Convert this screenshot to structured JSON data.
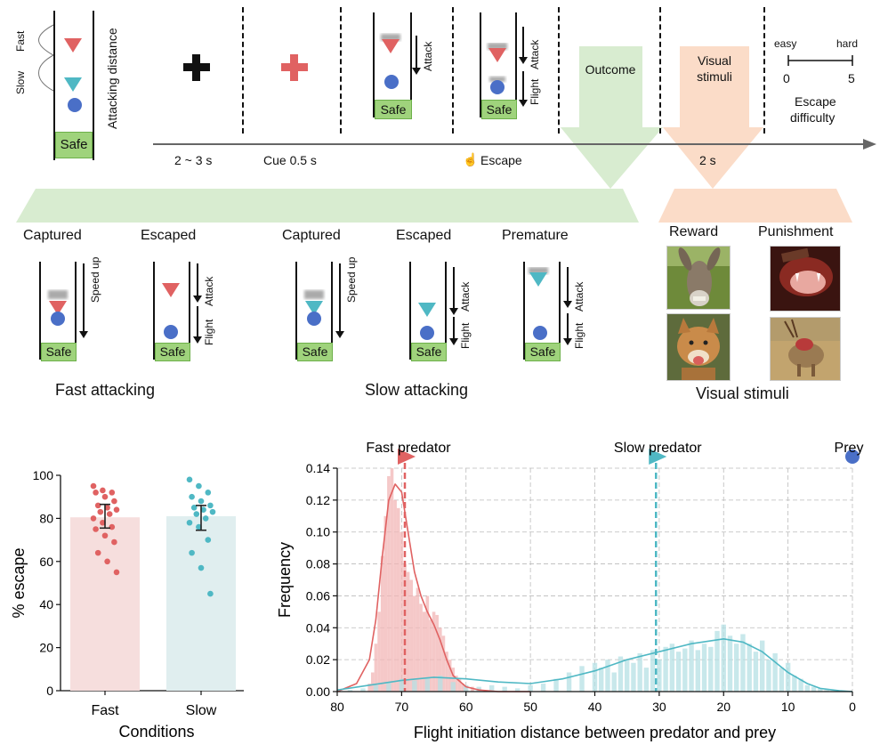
{
  "legend": {
    "fast": "Fast",
    "slow": "Slow",
    "attacking_distance": "Attacking distance",
    "safe": "Safe"
  },
  "timeline": {
    "iti": "2 ~ 3 s",
    "cue": "Cue 0.5 s",
    "escape": "Escape",
    "stim_time": "2 s",
    "attack": "Attack",
    "flight": "Flight",
    "outcome": "Outcome",
    "visual_stimuli_line1": "Visual",
    "visual_stimuli_line2": "stimuli"
  },
  "difficulty": {
    "easy": "easy",
    "hard": "hard",
    "min": "0",
    "max": "5",
    "label1": "Escape",
    "label2": "difficulty"
  },
  "outcomes": {
    "captured": "Captured",
    "escaped": "Escaped",
    "premature": "Premature",
    "speed_up": "Speed up",
    "flight": "Flight",
    "attack": "Attack",
    "fast_attacking": "Fast attacking",
    "slow_attacking": "Slow attacking"
  },
  "stimuli": {
    "reward": "Reward",
    "punishment": "Punishment",
    "caption": "Visual stimuli"
  },
  "colors": {
    "red": "#e06262",
    "teal": "#4fb8c4",
    "blue": "#4a6fc7",
    "green_band": "#d8ecd0",
    "peach_band": "#fbdcc8",
    "safe_green": "#9fd37c"
  },
  "chart_data": [
    {
      "type": "bar",
      "categories": [
        "Fast",
        "Slow"
      ],
      "values": [
        80.5,
        81
      ],
      "error": [
        [
          75.5,
          86.5
        ],
        [
          74.5,
          86
        ]
      ],
      "points": {
        "Fast": [
          95,
          93,
          92,
          92,
          90,
          88,
          86,
          85,
          84,
          83,
          82,
          80,
          78,
          76,
          75,
          72,
          69,
          64,
          60,
          55
        ],
        "Slow": [
          98,
          95,
          92,
          90,
          88,
          86,
          85,
          84,
          83,
          82,
          80,
          78,
          76,
          70,
          64,
          57,
          45
        ]
      },
      "xlabel": "Conditions",
      "ylabel": "% escape",
      "ylim": [
        0,
        100
      ],
      "yticks": [
        0,
        20,
        40,
        60,
        80,
        100
      ]
    },
    {
      "type": "area",
      "xlabel": "Flight initiation distance between predator and prey",
      "ylabel": "Frequency",
      "xlim": [
        80,
        0
      ],
      "ylim": [
        0,
        0.14
      ],
      "xticks": [
        80,
        70,
        60,
        50,
        40,
        30,
        20,
        10,
        0
      ],
      "yticks": [
        "0.00",
        "0.02",
        "0.04",
        "0.06",
        "0.08",
        "0.10",
        "0.12",
        "0.14"
      ],
      "grid": true,
      "annotations": {
        "fast_predator": "Fast predator",
        "slow_predator": "Slow predator",
        "prey": "Prey"
      },
      "markers": {
        "fast_predator_x": 69.5,
        "slow_predator_x": 30.5,
        "prey_x": 0
      },
      "series": [
        {
          "name": "Fast",
          "kde_x": [
            80,
            77,
            75,
            74,
            73,
            72,
            71,
            70,
            69,
            68,
            67,
            66,
            65,
            64,
            63,
            62,
            60,
            58,
            55,
            50
          ],
          "kde_y": [
            0,
            0.005,
            0.02,
            0.045,
            0.085,
            0.12,
            0.13,
            0.125,
            0.1,
            0.075,
            0.06,
            0.05,
            0.042,
            0.032,
            0.02,
            0.01,
            0.003,
            0.001,
            0,
            0
          ],
          "hist_x": [
            75,
            74.5,
            74,
            73.5,
            73,
            72.5,
            72,
            71.5,
            71,
            70.5,
            70,
            69.5,
            69,
            68.5,
            68,
            67.5,
            67,
            66.5,
            66,
            65.5,
            65,
            64.5,
            64,
            63.5,
            63,
            62.5,
            62,
            61.5,
            61,
            60.5,
            60,
            59,
            58,
            57
          ],
          "hist_y": [
            0.005,
            0.012,
            0.03,
            0.05,
            0.085,
            0.11,
            0.135,
            0.14,
            0.12,
            0.115,
            0.1,
            0.08,
            0.075,
            0.07,
            0.06,
            0.065,
            0.055,
            0.05,
            0.06,
            0.045,
            0.05,
            0.048,
            0.04,
            0.035,
            0.025,
            0.02,
            0.015,
            0.01,
            0.008,
            0.005,
            0.004,
            0.003,
            0.002,
            0.001
          ]
        },
        {
          "name": "Slow",
          "kde_x": [
            80,
            75,
            70,
            65,
            60,
            55,
            50,
            45,
            40,
            35,
            30,
            25,
            20,
            17,
            14,
            10,
            7,
            5,
            2,
            0
          ],
          "kde_y": [
            0.001,
            0.004,
            0.007,
            0.009,
            0.008,
            0.006,
            0.005,
            0.008,
            0.013,
            0.02,
            0.025,
            0.03,
            0.033,
            0.031,
            0.025,
            0.012,
            0.005,
            0.002,
            0.0005,
            0
          ],
          "hist_x": [
            78,
            76,
            74,
            72,
            70,
            68,
            66,
            64,
            62,
            60,
            58,
            56,
            54,
            52,
            50,
            48,
            46,
            44,
            42,
            40,
            39,
            38,
            37,
            36,
            35,
            34,
            33,
            32,
            31,
            30,
            29,
            28,
            27,
            26,
            25,
            24,
            23,
            22,
            21,
            20,
            19,
            18,
            17,
            16,
            15,
            14,
            13,
            12,
            11,
            10,
            9,
            8,
            7,
            6,
            5,
            4,
            3
          ],
          "hist_y": [
            0.001,
            0.002,
            0.004,
            0.006,
            0.008,
            0.007,
            0.009,
            0.01,
            0.006,
            0.004,
            0.003,
            0.004,
            0.003,
            0.002,
            0.004,
            0.005,
            0.008,
            0.012,
            0.016,
            0.018,
            0.015,
            0.02,
            0.012,
            0.022,
            0.02,
            0.018,
            0.024,
            0.015,
            0.026,
            0.02,
            0.028,
            0.03,
            0.025,
            0.027,
            0.032,
            0.026,
            0.03,
            0.028,
            0.038,
            0.042,
            0.035,
            0.03,
            0.036,
            0.03,
            0.025,
            0.032,
            0.02,
            0.024,
            0.015,
            0.018,
            0.01,
            0.008,
            0.004,
            0.003,
            0.002,
            0.001,
            0.0005
          ]
        }
      ]
    }
  ]
}
